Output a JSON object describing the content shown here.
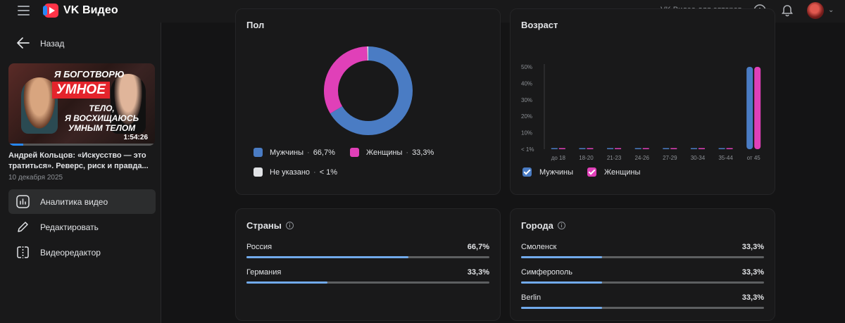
{
  "header": {
    "logo_text": "VK Видео",
    "authors_link": "VK Видео для авторов"
  },
  "sidebar": {
    "back_label": "Назад",
    "video": {
      "thumb_line1": "Я БОГОТВОРЮ",
      "thumb_line2": "УМНОЕ",
      "thumb_line3": "ТЕЛО,",
      "thumb_line4": "Я ВОСХИЩАЮСЬ",
      "thumb_line5": "УМНЫМ ТЕЛОМ",
      "duration": "1:54:26",
      "title": "Андрей Кольцов: «Искусство — это тратиться». Реверс, риск и правда...",
      "date": "10 декабря 2025"
    },
    "nav": [
      {
        "label": "Аналитика видео",
        "icon": "analytics-icon",
        "active": true
      },
      {
        "label": "Редактировать",
        "icon": "pencil-icon",
        "active": false
      },
      {
        "label": "Видеоредактор",
        "icon": "video-editor-icon",
        "active": false
      }
    ]
  },
  "gender": {
    "title": "Пол",
    "items": [
      {
        "label": "Мужчины",
        "value": "66,7%",
        "color": "#4a7cc4"
      },
      {
        "label": "Женщины",
        "value": "33,3%",
        "color": "#e040b8"
      },
      {
        "label": "Не указано",
        "value": "< 1%",
        "color": "#e1e3e6"
      }
    ]
  },
  "age": {
    "title": "Возраст",
    "legend": [
      {
        "label": "Мужчины",
        "color": "#4a7cc4"
      },
      {
        "label": "Женщины",
        "color": "#e040b8"
      }
    ]
  },
  "countries": {
    "title": "Страны",
    "rows": [
      {
        "label": "Россия",
        "value": "66,7%",
        "fraction": 0.667
      },
      {
        "label": "Германия",
        "value": "33,3%",
        "fraction": 0.333
      }
    ]
  },
  "cities": {
    "title": "Города",
    "rows": [
      {
        "label": "Смоленск",
        "value": "33,3%",
        "fraction": 0.333
      },
      {
        "label": "Симферополь",
        "value": "33,3%",
        "fraction": 0.333
      },
      {
        "label": "Berlin",
        "value": "33,3%",
        "fraction": 0.333
      }
    ]
  },
  "chart_data": [
    {
      "type": "pie",
      "title": "Пол",
      "categories": [
        "Мужчины",
        "Женщины",
        "Не указано"
      ],
      "values": [
        66.7,
        33.3,
        0.5
      ],
      "colors": [
        "#4a7cc4",
        "#e040b8",
        "#e1e3e6"
      ],
      "donut": true
    },
    {
      "type": "bar",
      "title": "Возраст",
      "categories": [
        "до 18",
        "18-20",
        "21-23",
        "24-26",
        "27-29",
        "30-34",
        "35-44",
        "от 45"
      ],
      "yticks": [
        "< 1%",
        "10%",
        "20%",
        "30%",
        "40%",
        "50%"
      ],
      "ylim": [
        0,
        50
      ],
      "series": [
        {
          "name": "Мужчины",
          "color": "#4a7cc4",
          "values": [
            0,
            0,
            0,
            0,
            0,
            0,
            0,
            50
          ]
        },
        {
          "name": "Женщины",
          "color": "#e040b8",
          "values": [
            0,
            0,
            0,
            0,
            0,
            0,
            0,
            50
          ]
        }
      ],
      "grid": true,
      "legend": "bottom-left"
    }
  ]
}
